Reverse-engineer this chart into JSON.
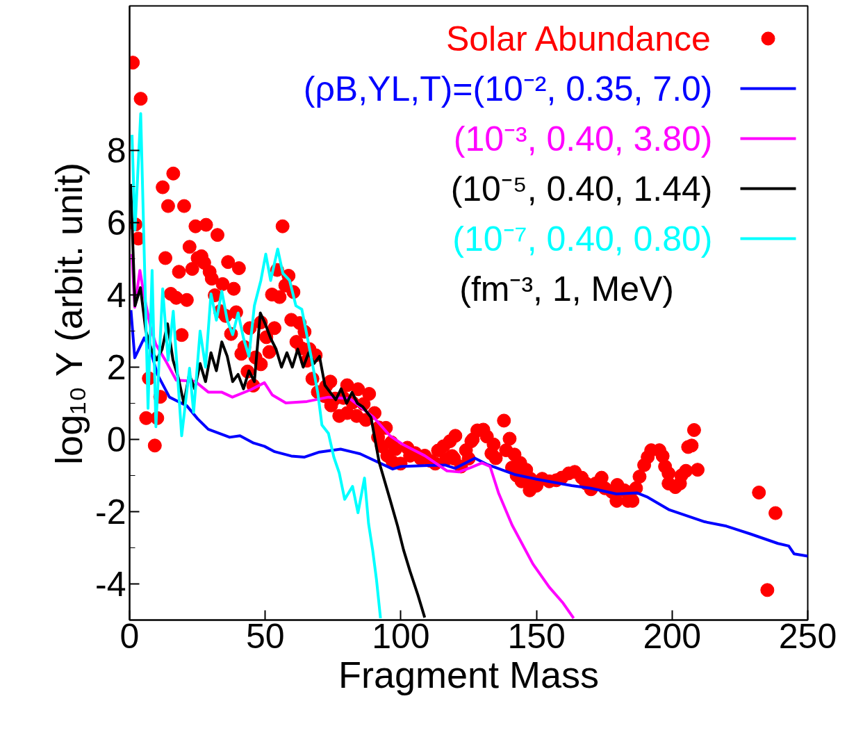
{
  "chart_data": {
    "type": "line",
    "xlabel": "Fragment Mass",
    "ylabel": "log₁₀ Y (arbit. unit)",
    "xlim": [
      0,
      250
    ],
    "xticks": [
      0,
      50,
      100,
      150,
      200,
      250
    ],
    "ylim": [
      -5,
      12
    ],
    "yticks": [
      -4,
      -2,
      0,
      2,
      4,
      6,
      8
    ],
    "legend": "top right",
    "annotations": [
      "(fm⁻³,     1, MeV)"
    ],
    "series": [
      {
        "name": "Solar Abundance",
        "type": "scatter",
        "marker": "circle",
        "color": "#ff0000",
        "x": [
          1.2,
          2.2,
          3.2,
          4.1,
          6.1,
          7.1,
          9.3,
          10.2,
          11.3,
          12.2,
          13.2,
          14.2,
          15.2,
          16.1,
          17.2,
          18.2,
          19.2,
          20.1,
          21.1,
          22.1,
          23.1,
          24.3,
          25.1,
          26.5,
          27.5,
          28.2,
          29.5,
          30.3,
          31.4,
          32.4,
          33.4,
          34.3,
          35.4,
          36.3,
          37.4,
          38.4,
          39.3,
          40.3,
          41.2,
          42.3,
          43.5,
          44.3,
          45.6,
          46.4,
          48.4,
          48.4,
          50.4,
          51.5,
          52.5,
          53.4,
          54.4,
          55.3,
          56.4,
          57.4,
          58.6,
          59.6,
          60.4,
          61.5,
          62.7,
          63.5,
          64.5,
          65.4,
          66.3,
          67.4,
          68.6,
          69.4,
          71.8,
          72.4,
          74.0,
          74.3,
          75.8,
          77.3,
          78.8,
          80.2,
          80.2,
          82.2,
          83.7,
          84.2,
          86.3,
          87.1,
          88.3,
          90.3,
          91.6,
          91.9,
          93,
          94.5,
          95,
          96.5,
          97,
          98,
          99.9,
          102.4,
          103.4,
          105.3,
          107.3,
          108.8,
          110.8,
          112.7,
          113.7,
          115.7,
          116.7,
          118.1,
          118.9,
          119.6,
          120.1,
          122.2,
          124,
          125,
          126,
          126.5,
          128.2,
          130.4,
          131.7,
          133.4,
          134.2,
          135,
          138,
          138.8,
          140.1,
          141,
          141.9,
          142.7,
          144,
          144.5,
          146.2,
          147.5,
          147.8,
          150,
          152.1,
          154.7,
          157.3,
          159.3,
          161.9,
          164.1,
          166.7,
          168.3,
          170.1,
          171.8,
          174,
          175.2,
          177.8,
          179.5,
          179.8,
          182.4,
          183.7,
          185.4,
          186.7,
          188,
          189.7,
          191,
          192.3,
          195.3,
          196.5,
          197.4,
          198.7,
          198.7,
          201.2,
          202.9,
          203.4,
          205.1,
          205.9,
          207.2,
          208.1,
          209.4,
          232,
          235.1,
          238.1
        ],
        "values": [
          10.43,
          5.95,
          5.56,
          9.43,
          0.59,
          1.69,
          -0.17,
          0.59,
          1.18,
          6.98,
          5.02,
          6.46,
          4.03,
          7.36,
          3.92,
          4.64,
          2.89,
          6.46,
          3.86,
          5.33,
          4.72,
          5.9,
          5.02,
          5.07,
          4.89,
          5.94,
          4.64,
          4.45,
          3.99,
          5.66,
          3.55,
          4.3,
          3.42,
          4.91,
          2.92,
          4.17,
          3.52,
          4.74,
          2.37,
          2.56,
          1.88,
          3.08,
          1.49,
          2.27,
          2.08,
          3.24,
          2.83,
          2.42,
          4.01,
          3.08,
          4.69,
          3.94,
          5.9,
          4.26,
          4.53,
          3.31,
          4.08,
          2.7,
          3.22,
          2.52,
          2.98,
          2.18,
          2.5,
          1.68,
          2.33,
          1.31,
          1.2,
          1.47,
          1.6,
          0.94,
          1.13,
          0.65,
          1.15,
          1.5,
          0.73,
          1.02,
          0.65,
          1.39,
          0.98,
          0.54,
          1.26,
          0.73,
          0.06,
          0.33,
          -0.19,
          0.32,
          -0.45,
          -0.08,
          -0.63,
          -0.27,
          -0.67,
          -0.23,
          -0.45,
          -0.38,
          -0.53,
          -0.45,
          -0.59,
          -0.67,
          -0.31,
          -0.19,
          -0.55,
          -0.05,
          -0.46,
          -0.53,
          0.1,
          -0.75,
          -0.3,
          -0.53,
          -0.05,
          0,
          0.25,
          0.27,
          0.08,
          -0.39,
          -0.14,
          -0.52,
          0.52,
          -0.3,
          0.02,
          -0.78,
          -0.42,
          -1,
          -0.65,
          -1.16,
          -0.84,
          -1.41,
          -1.09,
          -1.28,
          -1.09,
          -1.16,
          -1.13,
          -1.06,
          -0.94,
          -0.9,
          -1.06,
          -1.22,
          -1.38,
          -1.22,
          -1.06,
          -1.35,
          -1.45,
          -1.7,
          -1.26,
          -1.41,
          -1.7,
          -1.7,
          -1.35,
          -1.03,
          -0.71,
          -0.49,
          -0.3,
          -0.3,
          -0.46,
          -0.75,
          -0.94,
          -1.22,
          -1.32,
          -1.22,
          -1,
          -0.87,
          -0.21,
          -0.17,
          0.26,
          -0.84,
          -1.47,
          -4.17,
          -2.04
        ]
      },
      {
        "name": "(ρB,YL,T)=(10⁻², 0.35, 7.0)",
        "color": "#0000ff",
        "x": [
          0.5,
          1.9,
          5.4,
          7.8,
          10.2,
          14.7,
          21.1,
          25.1,
          29,
          36.9,
          40.7,
          45.7,
          49.7,
          53.5,
          59.6,
          64.5,
          70,
          77.8,
          85,
          97,
          100,
          110,
          116.3,
          120,
          127.3,
          131.7,
          141.9,
          150,
          163,
          170,
          179.5,
          187,
          191,
          199,
          212,
          220,
          229,
          239,
          243,
          245,
          250
        ],
        "values": [
          3.58,
          2.26,
          2.81,
          2.45,
          1.81,
          1.17,
          0.93,
          0.57,
          0.28,
          0.06,
          0.1,
          -0.1,
          -0.19,
          -0.34,
          -0.46,
          -0.49,
          -0.35,
          -0.27,
          -0.4,
          -0.82,
          -0.75,
          -0.72,
          -0.71,
          -0.8,
          -0.52,
          -0.69,
          -0.97,
          -1.1,
          -1.28,
          -1.35,
          -1.51,
          -1.48,
          -1.6,
          -1.95,
          -2.28,
          -2.4,
          -2.62,
          -2.88,
          -2.95,
          -3.17,
          -3.23
        ]
      },
      {
        "name": "(10⁻³, 0.40, 3.80)",
        "color": "#ff00ff",
        "x": [
          0.9,
          1.9,
          3.8,
          5.4,
          7.8,
          9.7,
          13.2,
          17.2,
          24.1,
          29,
          33.9,
          37.9,
          44.8,
          49.7,
          52.6,
          57.6,
          65.4,
          73.3,
          81.2,
          90,
          96,
          101,
          108.8,
          117,
          121.4,
          125.7,
          129.9,
          132.9,
          136,
          141,
          148.7,
          154.7,
          159.8,
          163.7
        ],
        "values": [
          5.13,
          3.66,
          4.68,
          3.96,
          3.08,
          2.63,
          2.19,
          1.64,
          1.61,
          1.31,
          1.31,
          1.17,
          1.38,
          1.57,
          1.23,
          1.01,
          1.05,
          1.17,
          1.13,
          0.61,
          0.1,
          -0.15,
          -0.45,
          -0.87,
          -0.9,
          -0.78,
          -0.65,
          -0.75,
          -1.48,
          -2.37,
          -3.45,
          -4.09,
          -4.53,
          -4.95
        ]
      },
      {
        "name": "(10⁻⁵, 0.40, 1.44)",
        "color": "#000000",
        "x": [
          0.4,
          2,
          4,
          6,
          8,
          10,
          12,
          14,
          16,
          18,
          20,
          22,
          24,
          26,
          28,
          30,
          32,
          34,
          36,
          38,
          40,
          42,
          44,
          46,
          48.2,
          50,
          52,
          54,
          56,
          58,
          60,
          62,
          64,
          66,
          68,
          70,
          72,
          74,
          76,
          78,
          80,
          82,
          84,
          86,
          89,
          92,
          96,
          98.8,
          101,
          103.4,
          106.3,
          108.8
        ],
        "values": [
          7.07,
          3.7,
          4.2,
          3.0,
          2.5,
          2.2,
          2.5,
          3.2,
          2.2,
          1.7,
          1.0,
          1.8,
          1.4,
          2.1,
          1.6,
          2.4,
          1.9,
          2.7,
          2.3,
          1.6,
          1.8,
          1.4,
          1.9,
          1.6,
          3.5,
          3.2,
          2.8,
          2.5,
          2.0,
          2.4,
          2.0,
          2.5,
          2.0,
          2.4,
          2.1,
          2.3,
          1.5,
          1.3,
          1.1,
          1.4,
          1.0,
          1.3,
          1.0,
          0.9,
          0.61,
          -0.63,
          -1.66,
          -2.4,
          -3.06,
          -3.65,
          -4.31,
          -4.93
        ]
      },
      {
        "name": "(10⁻⁷, 0.40, 0.80)",
        "color": "#00ffff",
        "x": [
          0.9,
          2,
          4.1,
          5.9,
          6.8,
          8.3,
          9.7,
          12.2,
          14.2,
          16.1,
          19.2,
          22.1,
          23.6,
          26,
          28,
          30,
          32,
          34,
          36,
          38,
          40,
          42,
          44,
          46,
          48.4,
          50.2,
          52,
          54.6,
          56.5,
          59,
          61.3,
          63.5,
          66.9,
          69.4,
          70.9,
          73.3,
          75.3,
          77.3,
          79.3,
          82.2,
          84.2,
          86.6,
          88.1,
          89.6,
          91,
          92.5
        ],
        "values": [
          8.43,
          5.8,
          9.02,
          3.66,
          0.86,
          4.68,
          0.35,
          4.17,
          2.19,
          3.55,
          0.1,
          1.97,
          0.75,
          3.0,
          2.0,
          4.03,
          3.3,
          4.1,
          3.3,
          2.9,
          3.5,
          2.8,
          2.3,
          3.7,
          4.4,
          5.13,
          4.4,
          5.27,
          4.6,
          4.4,
          3.7,
          3.6,
          2.3,
          1.28,
          0.4,
          0.17,
          -0.49,
          -0.93,
          -1.66,
          -1.3,
          -2.03,
          -1.07,
          -2.33,
          -3.06,
          -3.87,
          -4.95
        ]
      }
    ]
  }
}
